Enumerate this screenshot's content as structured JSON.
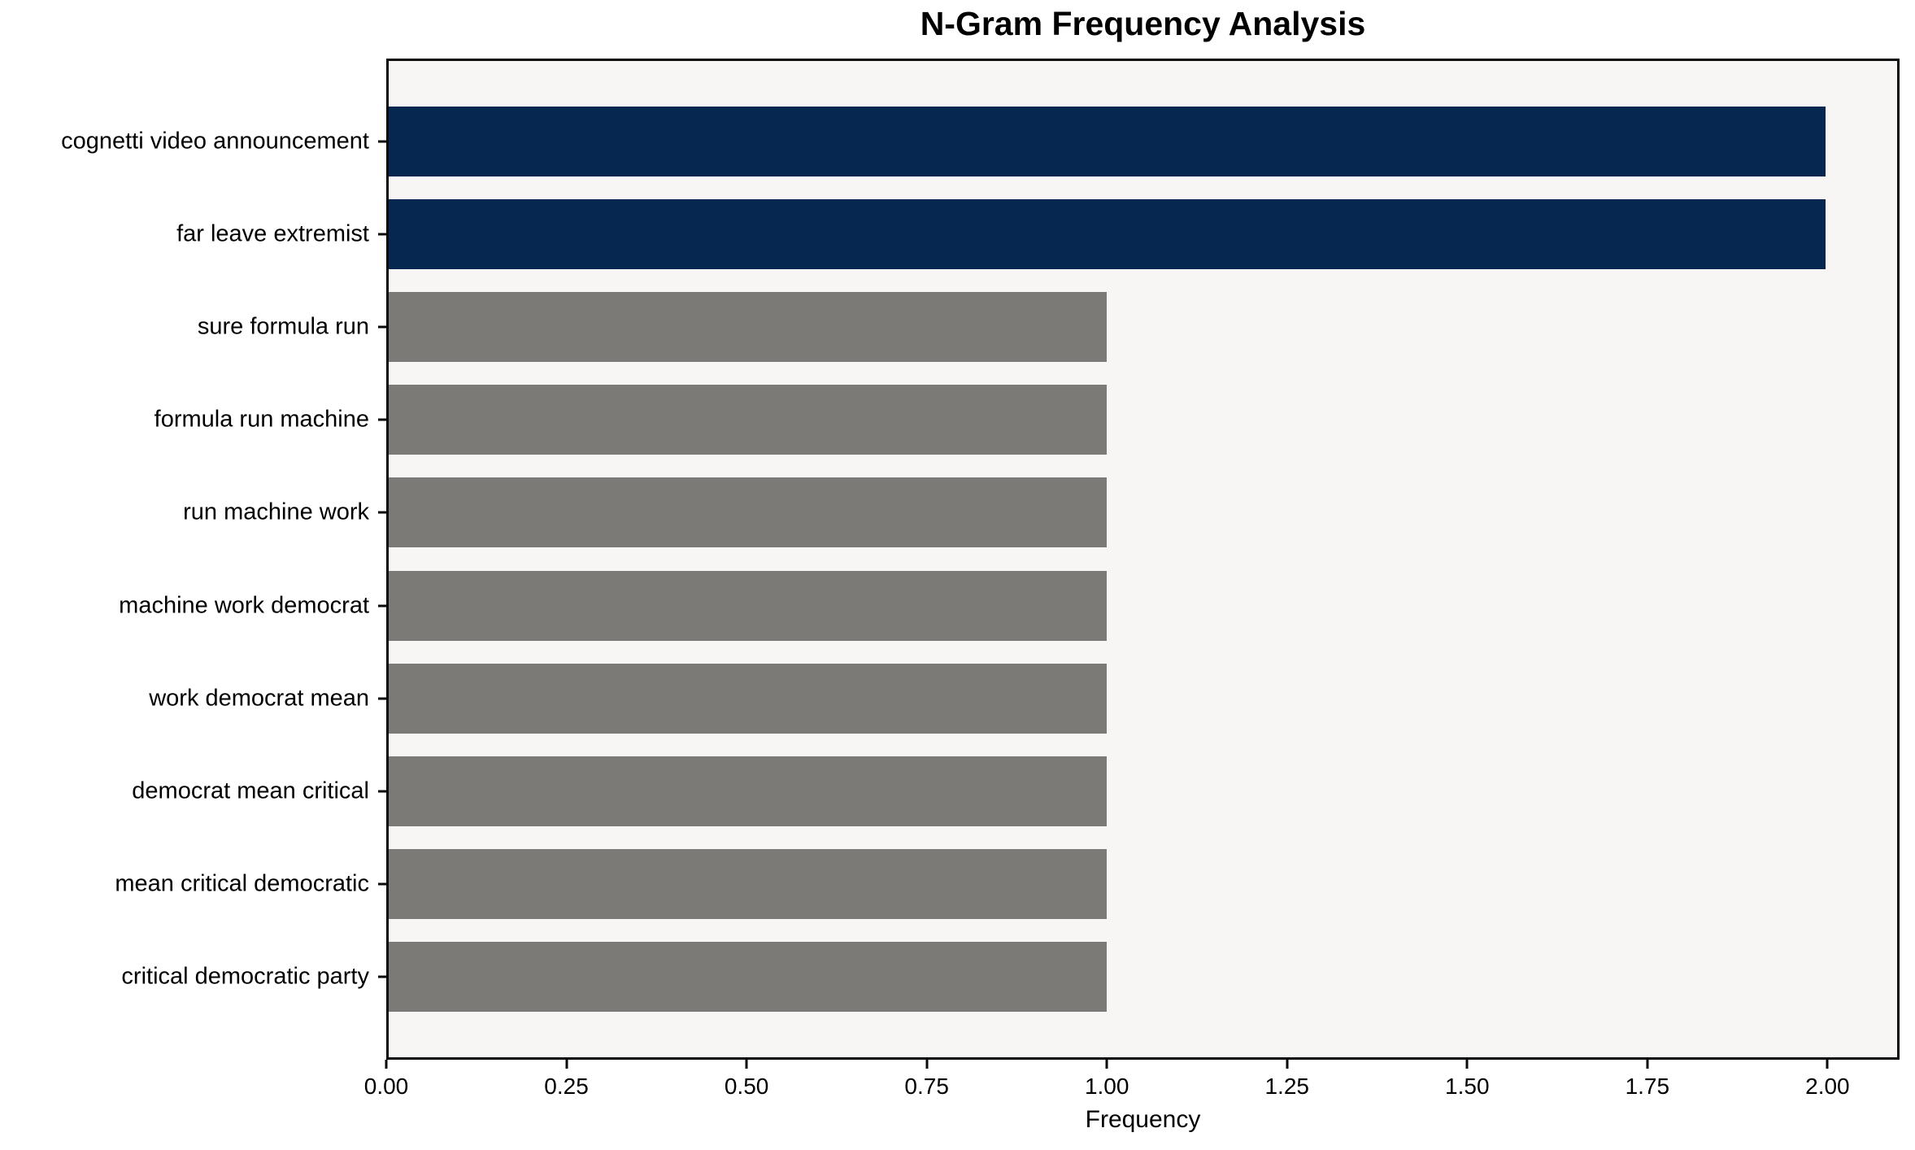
{
  "chart_data": {
    "type": "bar",
    "orientation": "horizontal",
    "title": "N-Gram Frequency Analysis",
    "xlabel": "Frequency",
    "ylabel": "",
    "categories": [
      "cognetti video announcement",
      "far leave extremist",
      "sure formula run",
      "formula run machine",
      "run machine work",
      "machine work democrat",
      "work democrat mean",
      "democrat mean critical",
      "mean critical democratic",
      "critical democratic party"
    ],
    "values": [
      2,
      2,
      1,
      1,
      1,
      1,
      1,
      1,
      1,
      1
    ],
    "bar_colors": [
      "#052750",
      "#052750",
      "#7b7a76",
      "#7b7a76",
      "#7b7a76",
      "#7b7a76",
      "#7b7a76",
      "#7b7a76",
      "#7b7a76",
      "#7b7a76"
    ],
    "xlim": [
      0,
      2.1
    ],
    "xtick_values": [
      0,
      0.25,
      0.5,
      0.75,
      1.0,
      1.25,
      1.5,
      1.75,
      2.0
    ],
    "xtick_labels": [
      "0.00",
      "0.25",
      "0.50",
      "0.75",
      "1.00",
      "1.25",
      "1.50",
      "1.75",
      "2.00"
    ],
    "grid": false,
    "legend": false,
    "colors": {
      "bar_high": "#052750",
      "bar_low": "#7b7a76",
      "plot_background": "#f7f6f4",
      "figure_background": "#ffffff",
      "spine": "#0a0a0a",
      "text": "#000000"
    }
  }
}
